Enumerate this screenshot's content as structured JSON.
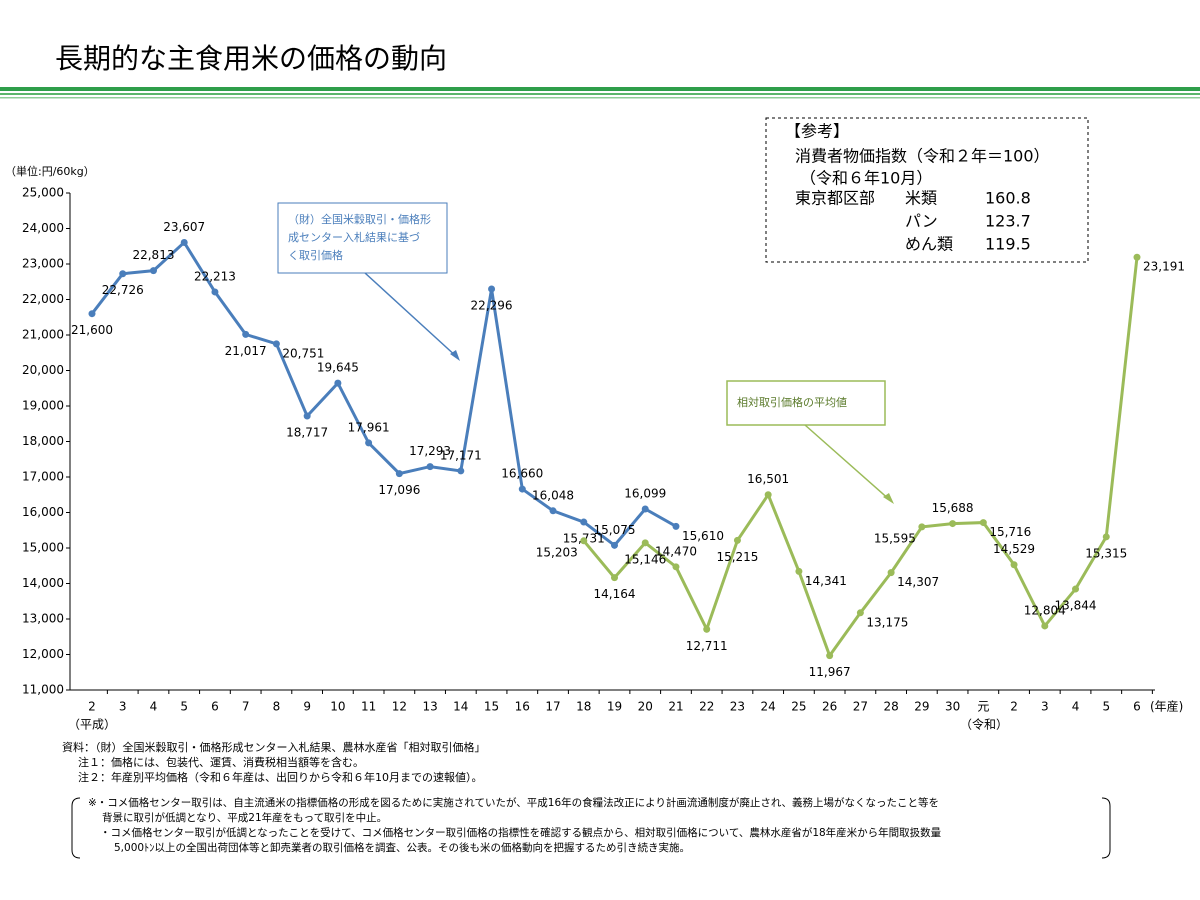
{
  "chart_data": {
    "type": "line",
    "title": "長期的な主食用米の価格の動向",
    "y_unit_label": "（単位:円/60kg）",
    "x_unit_label": "(年産)",
    "era_labels": [
      "（平成）",
      "（令和）"
    ],
    "categories": [
      "2",
      "3",
      "4",
      "5",
      "6",
      "7",
      "8",
      "9",
      "10",
      "11",
      "12",
      "13",
      "14",
      "15",
      "16",
      "17",
      "18",
      "19",
      "20",
      "21",
      "22",
      "23",
      "24",
      "25",
      "26",
      "27",
      "28",
      "29",
      "30",
      "元",
      "2",
      "3",
      "4",
      "5",
      "6"
    ],
    "ylim": [
      11000,
      25000
    ],
    "yticks": [
      {
        "value": 11000,
        "label": "11,000"
      },
      {
        "value": 12000,
        "label": "12,000"
      },
      {
        "value": 13000,
        "label": "13,000"
      },
      {
        "value": 14000,
        "label": "14,000"
      },
      {
        "value": 15000,
        "label": "15,000"
      },
      {
        "value": 16000,
        "label": "16,000"
      },
      {
        "value": 17000,
        "label": "17,000"
      },
      {
        "value": 18000,
        "label": "18,000"
      },
      {
        "value": 19000,
        "label": "19,000"
      },
      {
        "value": 20000,
        "label": "20,000"
      },
      {
        "value": 21000,
        "label": "21,000"
      },
      {
        "value": 22000,
        "label": "22,000"
      },
      {
        "value": 23000,
        "label": "23,000"
      },
      {
        "value": 24000,
        "label": "24,000"
      },
      {
        "value": 25000,
        "label": "25,000"
      }
    ],
    "series": [
      {
        "name": [
          "（財）全国米穀取引・価格形",
          "成センター入札結果に基づ",
          "く取引価格"
        ],
        "color": "#4a7ebb",
        "values": [
          21600,
          22726,
          22813,
          23607,
          22213,
          21017,
          20751,
          18717,
          19645,
          17961,
          17096,
          17293,
          17171,
          22296,
          16660,
          16048,
          15731,
          15075,
          16099,
          15610,
          null,
          null,
          null,
          null,
          null,
          null,
          null,
          null,
          null,
          null,
          null,
          null,
          null,
          null,
          null
        ],
        "value_labels": [
          "21,600",
          "22,726",
          "22,813",
          "23,607",
          "22,213",
          "21,017",
          "20,751",
          "18,717",
          "19,645",
          "17,961",
          "17,096",
          "17,293",
          "17,171",
          "22,296",
          "16,660",
          "16,048",
          "15,731",
          "15,075",
          "16,099",
          "15,610",
          null,
          null,
          null,
          null,
          null,
          null,
          null,
          null,
          null,
          null,
          null,
          null,
          null,
          null,
          null
        ]
      },
      {
        "name": [
          "相対取引価格の平均値"
        ],
        "color": "#9bbb59",
        "values": [
          null,
          null,
          null,
          null,
          null,
          null,
          null,
          null,
          null,
          null,
          null,
          null,
          null,
          null,
          null,
          null,
          15203,
          14164,
          15146,
          14470,
          12711,
          15215,
          16501,
          14341,
          11967,
          13175,
          14307,
          15595,
          15688,
          15716,
          14529,
          12804,
          13844,
          15315,
          23191
        ],
        "value_labels": [
          null,
          null,
          null,
          null,
          null,
          null,
          null,
          null,
          null,
          null,
          null,
          null,
          null,
          null,
          null,
          null,
          "15,203",
          "14,164",
          "15,146",
          "14,470",
          "12,711",
          "15,215",
          "16,501",
          "14,341",
          "11,967",
          "13,175",
          "14,307",
          "15,595",
          "15,688",
          "15,716",
          "14,529",
          "12,804",
          "13,844",
          "15,315",
          "23,191"
        ]
      }
    ],
    "reference": {
      "heading": "【参考】",
      "lines": [
        "消費者物価指数（令和２年＝100）",
        "（令和６年10月）"
      ],
      "region": "東京都区部",
      "items": [
        {
          "name": "米類",
          "value": 160.8
        },
        {
          "name": "パン",
          "value": 123.7
        },
        {
          "name": "めん類",
          "value": 119.5
        }
      ]
    },
    "notes": [
      "資料：（財）全国米穀取引・価格形成センター入札結果、農林水産省「相対取引価格」",
      "注１：価格には、包装代、運賃、消費税相当額等を含む。",
      "注２：年産別平均価格（令和６年産は、出回りから令和６年10月までの速報値）。"
    ],
    "remarks": [
      "※・コメ価格センター取引は、自主流通米の指標価格の形成を図るために実施されていたが、平成16年の食糧法改正により計画流通制度が廃止され、義務上場がなくなったこと等を",
      "背景に取引が低調となり、平成21年産をもって取引を中止。",
      "・コメ価格センター取引が低調となったことを受けて、コメ価格センター取引価格の指標性を確認する観点から、相対取引価格について、農林水産省が18年産米から年間取扱数量",
      "5,000ﾄﾝ以上の全国出荷団体等と卸売業者の取引価格を調査、公表。その後も米の価格動向を把握するため引き続き実施。"
    ]
  }
}
